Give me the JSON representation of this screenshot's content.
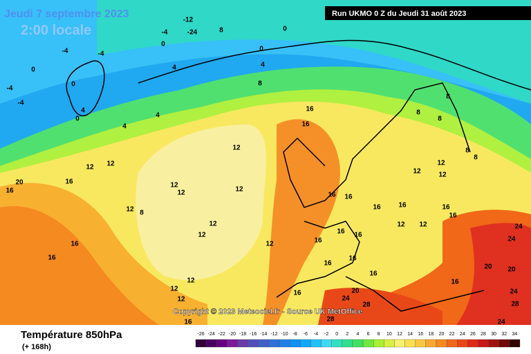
{
  "header": {
    "date": "Jeudi 7 septembre 2023",
    "time": "2:00 locale",
    "run": "Run UKMO 0 Z du Jeudi 31 août 2023"
  },
  "copyright": "Copyright © 2023 Meteociel.fr - Source UK MetOffice",
  "footer": {
    "title": "Température 850hPa",
    "lead": "(+ 168h)"
  },
  "legend": {
    "values": [
      -26,
      -24,
      -22,
      -20,
      -18,
      -16,
      -14,
      -12,
      -10,
      -8,
      -6,
      -4,
      -2,
      0,
      2,
      4,
      6,
      8,
      10,
      12,
      14,
      16,
      18,
      20,
      22,
      24,
      26,
      28,
      30,
      32,
      34
    ],
    "colors": [
      "#30003a",
      "#4a0060",
      "#64007e",
      "#7c1a9a",
      "#6a3aa8",
      "#5050b8",
      "#4060c8",
      "#3070d8",
      "#2080e8",
      "#1090f0",
      "#10a8f8",
      "#20c0f8",
      "#40d8f0",
      "#30e0c0",
      "#30e090",
      "#40e060",
      "#70e840",
      "#a8f030",
      "#d8f040",
      "#f8f070",
      "#f8e050",
      "#f8c840",
      "#f8a830",
      "#f58a20",
      "#f06818",
      "#e84818",
      "#e02818",
      "#c81818",
      "#a01010",
      "#700808",
      "#300000"
    ]
  },
  "contour_labels": [
    -12,
    -24,
    -4,
    8,
    0,
    0,
    -4,
    -4,
    0,
    0,
    4,
    4,
    -4,
    0,
    8,
    -4,
    4,
    4,
    4,
    0,
    16,
    16,
    12,
    12,
    12,
    20,
    16,
    16,
    12,
    12,
    12,
    16,
    16,
    16,
    12,
    12,
    8,
    8,
    8,
    8,
    12,
    8,
    12,
    12,
    12,
    16,
    16,
    16,
    16,
    16,
    16,
    16,
    16,
    12,
    12,
    24,
    24,
    20,
    20,
    24,
    28,
    16,
    16,
    20,
    24,
    28,
    28,
    12,
    12,
    12,
    16,
    16,
    16,
    16,
    8,
    12,
    24
  ]
}
